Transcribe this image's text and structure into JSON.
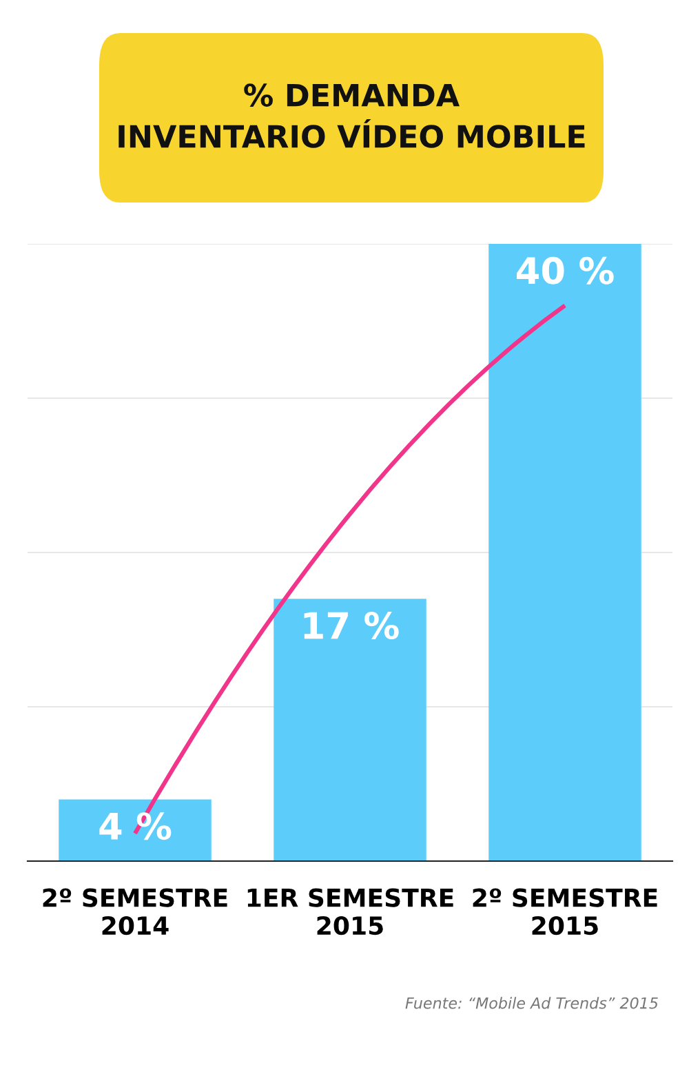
{
  "chart_data": {
    "type": "bar",
    "title": "% DEMANDA\nINVENTARIO VÍDEO MOBILE",
    "categories": [
      "2º SEMESTRE\n2014",
      "1ER SEMESTRE\n2015",
      "2º SEMESTRE\n2015"
    ],
    "series": [
      {
        "color": "#5ccdfb",
        "values": [
          4,
          17,
          40
        ],
        "value_labels": [
          "4 %",
          "17 %",
          "40 %"
        ]
      },
      {
        "type": "line",
        "color": "#f0358a",
        "values": [
          1.8,
          22.5,
          36
        ]
      }
    ],
    "ylim": [
      0,
      40
    ],
    "yticks": [
      {
        "value": 0,
        "label": null
      },
      {
        "value": 10,
        "label": null
      },
      {
        "value": 20,
        "label": null
      },
      {
        "value": 30,
        "label": null
      },
      {
        "value": 40,
        "label": null
      }
    ],
    "grid": "y",
    "tick_labels": "x",
    "legend": false,
    "annotations": [
      "Fuente: “Mobile Ad Trends” 2015"
    ]
  }
}
